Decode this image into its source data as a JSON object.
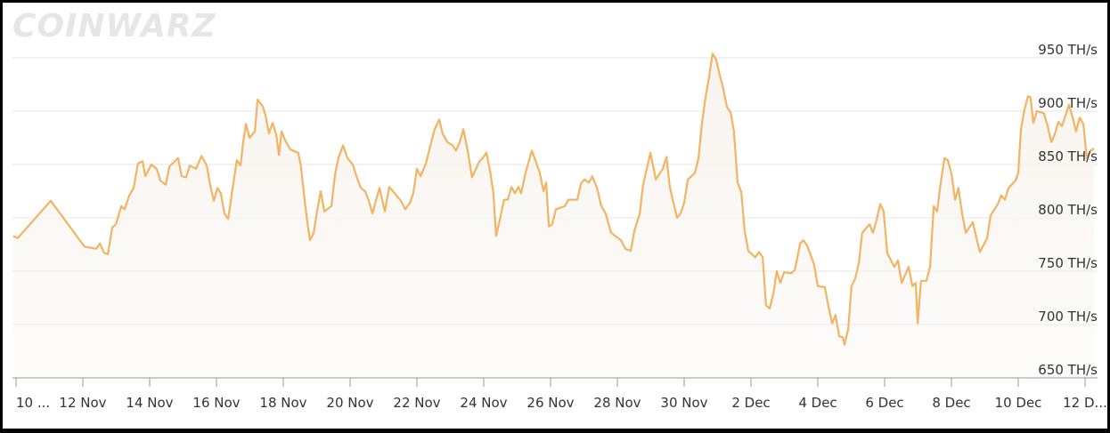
{
  "chart_data": {
    "type": "area",
    "watermark": "COINWARZ",
    "color": "#f2b462",
    "fill": "#f8f4ef",
    "grid": true,
    "xlim": [
      -0.1,
      32.4
    ],
    "ylim": [
      650,
      970
    ],
    "yticks": [
      {
        "value": 650,
        "label": "650 TH/s"
      },
      {
        "value": 700,
        "label": "700 TH/s"
      },
      {
        "value": 750,
        "label": "750 TH/s"
      },
      {
        "value": 800,
        "label": "800 TH/s"
      },
      {
        "value": 850,
        "label": "850 TH/s"
      },
      {
        "value": 900,
        "label": "900 TH/s"
      },
      {
        "value": 950,
        "label": "950 TH/s"
      }
    ],
    "xticks": [
      {
        "value": 0,
        "label": "10 ..."
      },
      {
        "value": 2,
        "label": "12 Nov"
      },
      {
        "value": 4,
        "label": "14 Nov"
      },
      {
        "value": 6,
        "label": "16 Nov"
      },
      {
        "value": 8,
        "label": "18 Nov"
      },
      {
        "value": 10,
        "label": "20 Nov"
      },
      {
        "value": 12,
        "label": "22 Nov"
      },
      {
        "value": 14,
        "label": "24 Nov"
      },
      {
        "value": 16,
        "label": "26 Nov"
      },
      {
        "value": 18,
        "label": "28 Nov"
      },
      {
        "value": 20,
        "label": "30 Nov"
      },
      {
        "value": 22,
        "label": "2 Dec"
      },
      {
        "value": 24,
        "label": "4 Dec"
      },
      {
        "value": 26,
        "label": "6 Dec"
      },
      {
        "value": 28,
        "label": "8 Dec"
      },
      {
        "value": 30,
        "label": "10 Dec"
      },
      {
        "value": 32,
        "label": "12 D..."
      }
    ],
    "x": [
      -0.08,
      0.05,
      1.04,
      2.05,
      2.4,
      2.51,
      2.64,
      2.75,
      2.88,
      2.99,
      3.15,
      3.25,
      3.39,
      3.52,
      3.65,
      3.79,
      3.87,
      4.05,
      4.21,
      4.32,
      4.48,
      4.59,
      4.75,
      4.85,
      4.96,
      5.09,
      5.2,
      5.39,
      5.55,
      5.71,
      5.81,
      5.92,
      6.03,
      6.13,
      6.24,
      6.35,
      6.45,
      6.61,
      6.72,
      6.8,
      6.88,
      6.99,
      7.15,
      7.23,
      7.39,
      7.47,
      7.57,
      7.68,
      7.79,
      7.87,
      7.95,
      8.05,
      8.21,
      8.45,
      8.53,
      8.64,
      8.72,
      8.8,
      8.91,
      9.01,
      9.12,
      9.23,
      9.44,
      9.55,
      9.65,
      9.79,
      9.92,
      10.08,
      10.19,
      10.32,
      10.45,
      10.56,
      10.67,
      10.77,
      10.88,
      11.04,
      11.17,
      11.28,
      11.52,
      11.65,
      11.79,
      11.89,
      12.0,
      12.11,
      12.27,
      12.43,
      12.53,
      12.67,
      12.77,
      12.91,
      13.07,
      13.17,
      13.28,
      13.39,
      13.52,
      13.65,
      13.87,
      13.97,
      14.08,
      14.19,
      14.29,
      14.37,
      14.48,
      14.61,
      14.72,
      14.83,
      14.93,
      15.04,
      15.12,
      15.25,
      15.44,
      15.52,
      15.68,
      15.79,
      15.87,
      15.95,
      16.05,
      16.16,
      16.43,
      16.53,
      16.8,
      16.91,
      17.01,
      17.15,
      17.25,
      17.39,
      17.52,
      17.65,
      17.81,
      18.11,
      18.24,
      18.4,
      18.51,
      18.67,
      18.77,
      18.99,
      19.15,
      19.36,
      19.47,
      19.57,
      19.68,
      19.79,
      19.89,
      20.0,
      20.11,
      20.32,
      20.43,
      20.53,
      20.64,
      20.75,
      20.85,
      20.96,
      21.07,
      21.17,
      21.28,
      21.39,
      21.49,
      21.6,
      21.71,
      21.81,
      21.92,
      22.13,
      22.24,
      22.35,
      22.45,
      22.56,
      22.67,
      22.77,
      22.88,
      22.99,
      23.2,
      23.31,
      23.39,
      23.47,
      23.57,
      23.68,
      23.79,
      23.89,
      24.0,
      24.21,
      24.32,
      24.43,
      24.53,
      24.64,
      24.75,
      24.8,
      24.91,
      25.01,
      25.12,
      25.23,
      25.33,
      25.55,
      25.65,
      25.76,
      25.87,
      25.97,
      26.08,
      26.29,
      26.4,
      26.51,
      26.72,
      26.83,
      26.93,
      26.99,
      27.09,
      27.25,
      27.36,
      27.47,
      27.57,
      27.68,
      27.79,
      27.89,
      28.0,
      28.11,
      28.21,
      28.32,
      28.43,
      28.64,
      28.75,
      28.85,
      29.07,
      29.17,
      29.39,
      29.49,
      29.6,
      29.71,
      29.92,
      30.0,
      30.08,
      30.19,
      30.29,
      30.37,
      30.45,
      30.56,
      30.77,
      30.88,
      30.99,
      31.09,
      31.2,
      31.31,
      31.52,
      31.63,
      31.73,
      31.84,
      31.95,
      32.05,
      32.16,
      32.27
    ],
    "values": [
      783,
      781,
      816,
      773,
      771,
      776,
      767,
      766,
      791,
      794,
      811,
      808,
      821,
      828,
      851,
      853,
      839,
      850,
      846,
      835,
      831,
      848,
      853,
      856,
      839,
      838,
      849,
      846,
      858,
      849,
      831,
      816,
      828,
      823,
      804,
      799,
      821,
      854,
      849,
      871,
      888,
      875,
      881,
      911,
      904,
      896,
      879,
      889,
      878,
      859,
      881,
      873,
      864,
      861,
      848,
      816,
      796,
      779,
      786,
      806,
      825,
      806,
      811,
      841,
      856,
      868,
      856,
      850,
      839,
      828,
      825,
      816,
      804,
      816,
      828,
      806,
      829,
      825,
      816,
      808,
      814,
      823,
      846,
      839,
      851,
      871,
      883,
      892,
      879,
      871,
      868,
      863,
      871,
      883,
      863,
      838,
      853,
      856,
      861,
      844,
      823,
      783,
      798,
      817,
      817,
      829,
      823,
      829,
      823,
      842,
      863,
      856,
      842,
      825,
      833,
      792,
      794,
      808,
      811,
      817,
      817,
      832,
      836,
      833,
      839,
      828,
      811,
      804,
      786,
      779,
      771,
      769,
      788,
      804,
      831,
      861,
      836,
      846,
      857,
      829,
      814,
      800,
      804,
      814,
      836,
      842,
      856,
      888,
      913,
      933,
      954,
      948,
      933,
      921,
      904,
      899,
      881,
      833,
      824,
      788,
      769,
      763,
      768,
      763,
      718,
      715,
      729,
      750,
      739,
      749,
      748,
      751,
      763,
      776,
      779,
      774,
      765,
      756,
      736,
      735,
      717,
      701,
      709,
      689,
      688,
      681,
      696,
      736,
      743,
      758,
      786,
      794,
      786,
      798,
      813,
      806,
      767,
      754,
      760,
      739,
      754,
      736,
      739,
      701,
      741,
      741,
      754,
      811,
      806,
      833,
      856,
      854,
      842,
      817,
      828,
      804,
      786,
      796,
      781,
      768,
      781,
      802,
      813,
      821,
      817,
      828,
      835,
      842,
      883,
      902,
      914,
      913,
      889,
      900,
      898,
      886,
      871,
      878,
      890,
      886,
      906,
      894,
      881,
      894,
      888,
      856,
      863,
      865
    ]
  }
}
